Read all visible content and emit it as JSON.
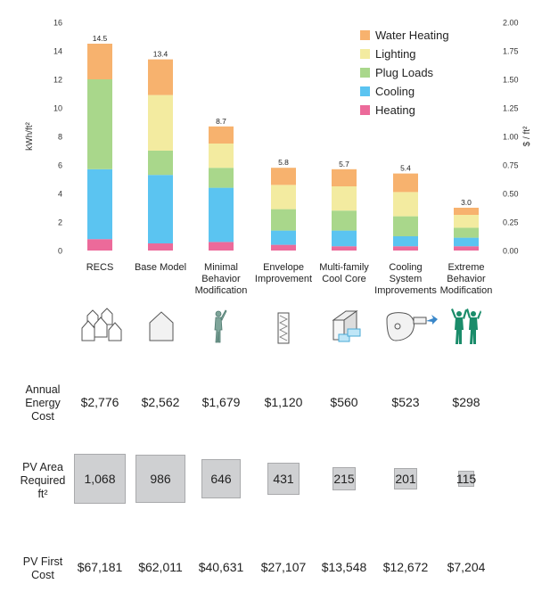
{
  "chart_data": {
    "type": "bar",
    "stacked": true,
    "categories": [
      "RECS",
      "Base Model",
      "Minimal Behavior Modification",
      "Envelope Improvement",
      "Multi-family Cool Core",
      "Cooling System Improvements",
      "Extreme Behavior Modification"
    ],
    "category_lines": [
      [
        "RECS"
      ],
      [
        "Base Model"
      ],
      [
        "Minimal",
        "Behavior",
        "Modification"
      ],
      [
        "Envelope",
        "Improvement"
      ],
      [
        "Multi-family",
        "Cool Core"
      ],
      [
        "Cooling",
        "System",
        "Improvements"
      ],
      [
        "Extreme",
        "Behavior",
        "Modification"
      ]
    ],
    "series": [
      {
        "name": "Heating",
        "color": "#ec6a9a",
        "values": [
          0.8,
          0.5,
          0.6,
          0.4,
          0.3,
          0.3,
          0.3
        ]
      },
      {
        "name": "Cooling",
        "color": "#5bc4f1",
        "values": [
          4.9,
          4.8,
          3.8,
          1.0,
          1.1,
          0.7,
          0.6
        ]
      },
      {
        "name": "Plug Loads",
        "color": "#a9d78b",
        "values": [
          6.3,
          1.7,
          1.4,
          1.5,
          1.4,
          1.4,
          0.7
        ]
      },
      {
        "name": "Lighting",
        "color": "#f3eba0",
        "values": [
          0.0,
          3.9,
          1.7,
          1.7,
          1.7,
          1.7,
          0.9
        ]
      },
      {
        "name": "Water Heating",
        "color": "#f7b26e",
        "values": [
          2.5,
          2.5,
          1.2,
          1.2,
          1.2,
          1.3,
          0.5
        ]
      }
    ],
    "totals": [
      "14.5",
      "13.4",
      "8.7",
      "5.8",
      "5.7",
      "5.4",
      "3.0"
    ],
    "ylabel": "kWh/ft²",
    "ylim": [
      0,
      16
    ],
    "yticks": [
      "0",
      "2",
      "4",
      "6",
      "8",
      "10",
      "12",
      "14",
      "16"
    ],
    "y2label": "$ / ft²",
    "y2lim": [
      0,
      2
    ],
    "y2ticks": [
      "0.00",
      "0.25",
      "0.50",
      "0.75",
      "1.00",
      "1.25",
      "1.50",
      "1.75",
      "2.00"
    ],
    "legend_position": "top-right",
    "legend_order": [
      "Water Heating",
      "Lighting",
      "Plug Loads",
      "Cooling",
      "Heating"
    ],
    "grid": false
  },
  "icons": [
    "houses-icon",
    "house-icon",
    "person-icon",
    "wall-section-icon",
    "cool-core-icon",
    "fan-icon",
    "people-icon"
  ],
  "rows": {
    "energy_cost": {
      "label_lines": [
        "Annual",
        "Energy",
        "Cost"
      ],
      "values": [
        "$2,776",
        "$2,562",
        "$1,679",
        "$1,120",
        "$560",
        "$523",
        "$298"
      ]
    },
    "pv_area": {
      "label_lines": [
        "PV Area",
        "Required",
        "ft²"
      ],
      "values": [
        "1,068",
        "986",
        "646",
        "431",
        "215",
        "201",
        "115"
      ],
      "area_ft2": [
        1068,
        986,
        646,
        431,
        215,
        201,
        115
      ],
      "box_color": "#cfd0d2"
    },
    "pv_cost": {
      "label_lines": [
        "PV First",
        "Cost"
      ],
      "values": [
        "$67,181",
        "$62,011",
        "$40,631",
        "$27,107",
        "$13,548",
        "$12,672",
        "$7,204"
      ]
    }
  }
}
